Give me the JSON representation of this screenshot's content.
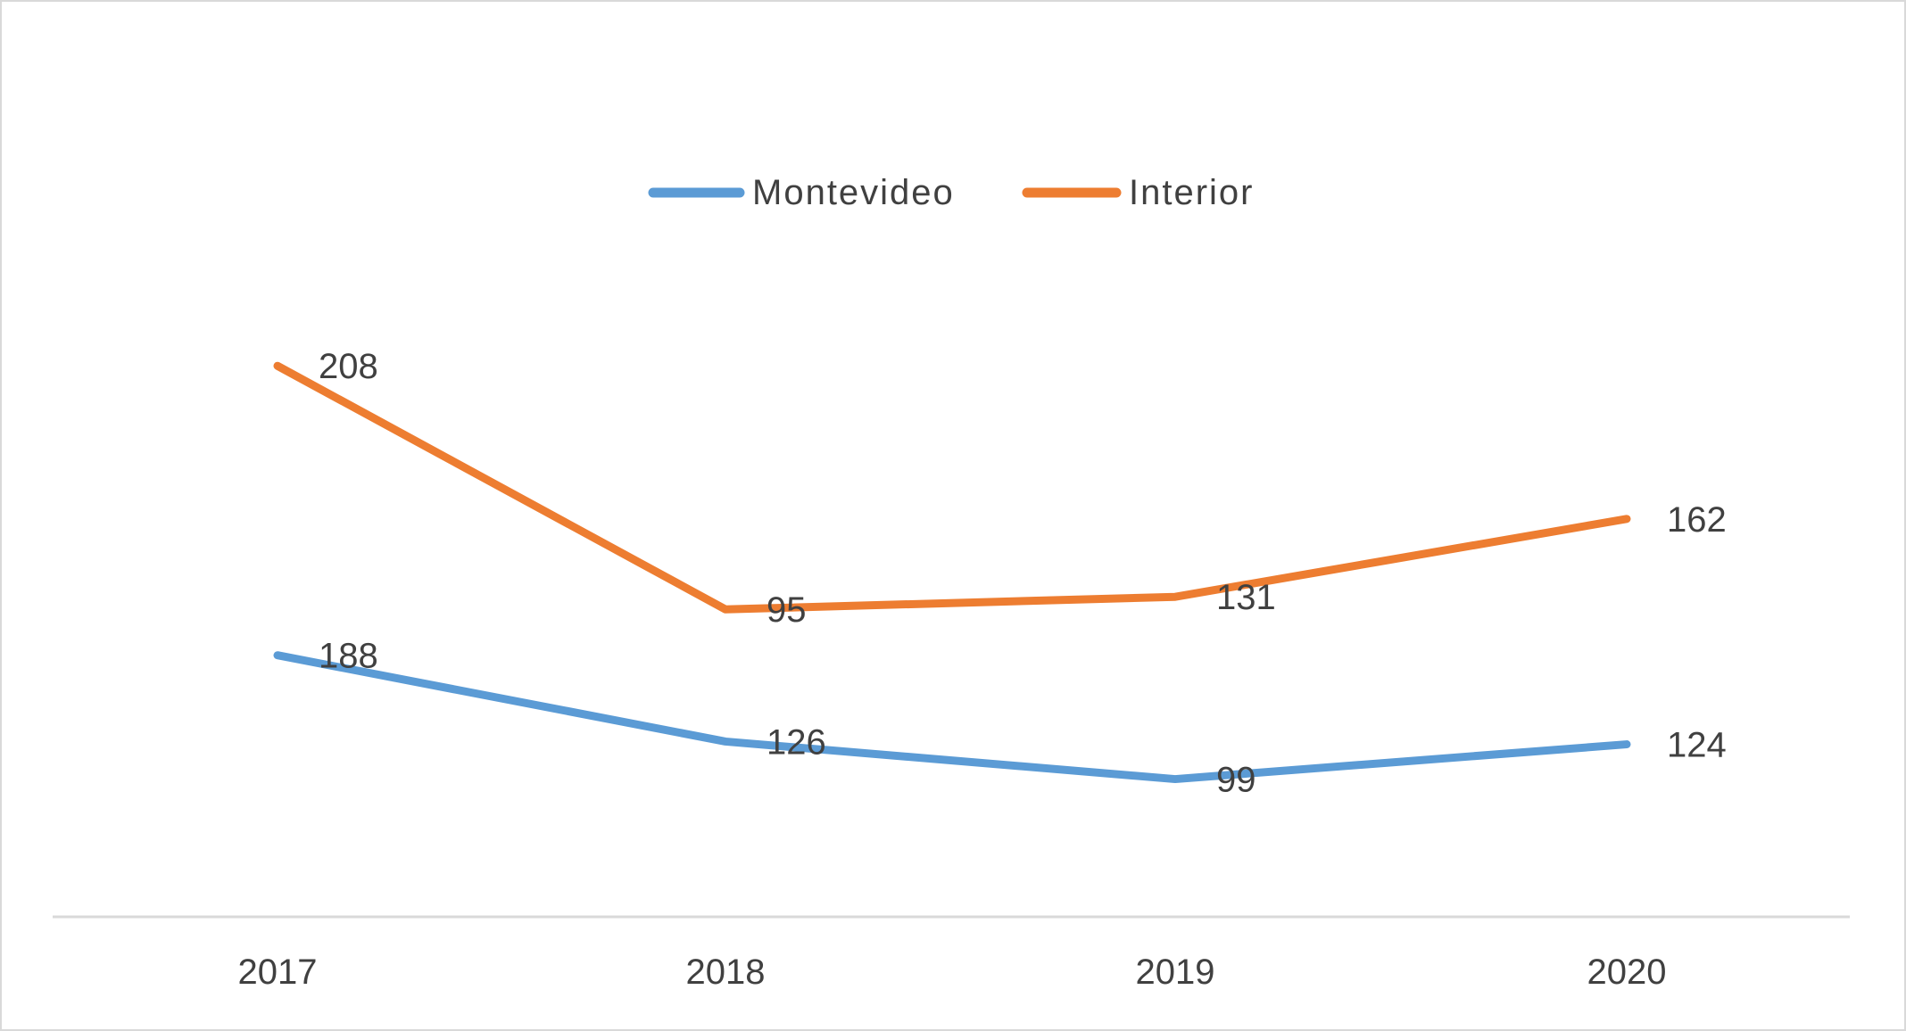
{
  "chart_data": {
    "type": "line",
    "stacked": true,
    "title": "",
    "xlabel": "",
    "ylabel": "",
    "categories": [
      "2017",
      "2018",
      "2019",
      "2020"
    ],
    "series": [
      {
        "name": "Montevideo",
        "values": [
          188,
          126,
          99,
          124
        ],
        "color": "#5b9bd5"
      },
      {
        "name": "Interior",
        "values": [
          208,
          95,
          131,
          162
        ],
        "color": "#ed7d31"
      }
    ],
    "ylim": [
      0,
      440
    ],
    "grid": false,
    "legend": "top-center",
    "axis_color": "#d9d9d9"
  }
}
